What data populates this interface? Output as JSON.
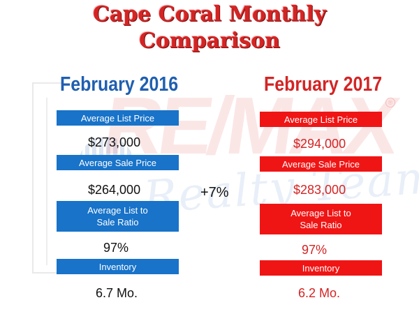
{
  "title_line1": "Cape Coral Monthly",
  "title_line2": "Comparison",
  "watermark": {
    "logo_text": "RE/MAX",
    "reg_mark": "®",
    "script_text": "Realty Team",
    "accent": "#e23b3b"
  },
  "left": {
    "heading": "February 2016",
    "avg_list_label": "Average List Price",
    "avg_list_value": "$273,000",
    "avg_sale_label": "Average Sale Price",
    "avg_sale_value": "$264,000",
    "ratio_label_line1": "Average List to",
    "ratio_label_line2": "Sale Ratio",
    "ratio_value": "97%",
    "inventory_label": "Inventory",
    "inventory_value": "6.7 Mo."
  },
  "right": {
    "heading": "February 2017",
    "avg_list_label": "Average List Price",
    "avg_list_value": "$294,000",
    "avg_sale_label": "Average Sale Price",
    "avg_sale_value": "$283,000",
    "ratio_label_line1": "Average List to",
    "ratio_label_line2": "Sale Ratio",
    "ratio_value": "97%",
    "inventory_label": "Inventory",
    "inventory_value": "6.2 Mo."
  },
  "change": "+7%",
  "colors": {
    "blue": "#1873c9",
    "red": "#f01515",
    "title_red": "#d42424"
  }
}
